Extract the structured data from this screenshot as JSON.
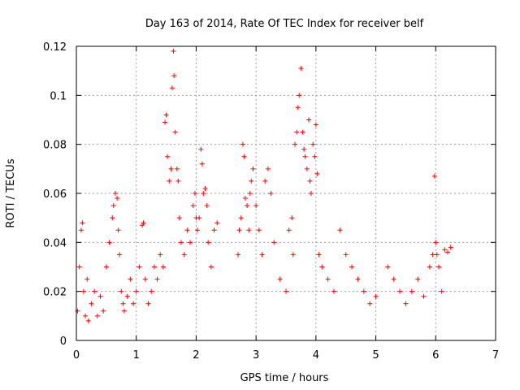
{
  "chart_data": {
    "type": "scatter",
    "title": "Day 163 of 2014, Rate Of TEC Index for receiver belf",
    "xlabel": "GPS time / hours",
    "ylabel": "ROTI / TECUs",
    "xlim": [
      0,
      7
    ],
    "ylim": [
      0,
      0.12
    ],
    "xticks": [
      "0",
      "1",
      "2",
      "3",
      "4",
      "5",
      "6",
      "7"
    ],
    "yticks": [
      "0",
      "0.02",
      "0.04",
      "0.06",
      "0.08",
      "0.1",
      "0.12"
    ],
    "grid": true,
    "marker": "+",
    "color": "#ff0000",
    "series": [
      {
        "name": "ROTI",
        "x": [
          0.02,
          0.05,
          0.08,
          0.1,
          0.12,
          0.15,
          0.18,
          0.2,
          0.25,
          0.3,
          0.35,
          0.4,
          0.45,
          0.5,
          0.55,
          0.6,
          0.62,
          0.65,
          0.68,
          0.7,
          0.72,
          0.75,
          0.78,
          0.8,
          0.85,
          0.9,
          0.95,
          1.0,
          1.05,
          1.1,
          1.12,
          1.15,
          1.2,
          1.25,
          1.3,
          1.35,
          1.4,
          1.45,
          1.48,
          1.5,
          1.52,
          1.55,
          1.58,
          1.6,
          1.62,
          1.63,
          1.65,
          1.68,
          1.7,
          1.72,
          1.75,
          1.8,
          1.85,
          1.9,
          1.95,
          1.98,
          2.0,
          2.02,
          2.05,
          2.08,
          2.1,
          2.12,
          2.15,
          2.18,
          2.2,
          2.25,
          2.3,
          2.35,
          2.7,
          2.72,
          2.75,
          2.78,
          2.8,
          2.82,
          2.85,
          2.88,
          2.9,
          2.92,
          2.95,
          3.0,
          3.05,
          3.1,
          3.15,
          3.2,
          3.25,
          3.3,
          3.4,
          3.5,
          3.55,
          3.6,
          3.62,
          3.65,
          3.68,
          3.7,
          3.72,
          3.75,
          3.78,
          3.8,
          3.82,
          3.85,
          3.88,
          3.9,
          3.92,
          3.95,
          3.98,
          4.0,
          4.02,
          4.05,
          4.1,
          4.2,
          4.3,
          4.4,
          4.5,
          4.6,
          4.7,
          4.8,
          4.9,
          5.0,
          5.2,
          5.3,
          5.4,
          5.5,
          5.6,
          5.7,
          5.8,
          5.9,
          5.95,
          5.98,
          6.0,
          6.02,
          6.05,
          6.1,
          6.15,
          6.2,
          6.25
        ],
        "y": [
          0.012,
          0.03,
          0.045,
          0.048,
          0.02,
          0.01,
          0.025,
          0.008,
          0.015,
          0.02,
          0.01,
          0.018,
          0.012,
          0.03,
          0.04,
          0.05,
          0.055,
          0.06,
          0.058,
          0.045,
          0.035,
          0.02,
          0.015,
          0.012,
          0.018,
          0.025,
          0.015,
          0.02,
          0.03,
          0.047,
          0.048,
          0.025,
          0.015,
          0.02,
          0.03,
          0.025,
          0.035,
          0.03,
          0.089,
          0.092,
          0.075,
          0.065,
          0.07,
          0.103,
          0.118,
          0.108,
          0.085,
          0.07,
          0.065,
          0.05,
          0.04,
          0.035,
          0.045,
          0.04,
          0.055,
          0.06,
          0.05,
          0.045,
          0.05,
          0.078,
          0.072,
          0.06,
          0.062,
          0.055,
          0.04,
          0.03,
          0.045,
          0.048,
          0.035,
          0.045,
          0.05,
          0.08,
          0.075,
          0.058,
          0.055,
          0.045,
          0.06,
          0.065,
          0.07,
          0.055,
          0.045,
          0.035,
          0.065,
          0.07,
          0.06,
          0.04,
          0.025,
          0.02,
          0.045,
          0.05,
          0.035,
          0.08,
          0.085,
          0.095,
          0.1,
          0.111,
          0.085,
          0.078,
          0.075,
          0.07,
          0.09,
          0.065,
          0.06,
          0.08,
          0.075,
          0.088,
          0.068,
          0.035,
          0.03,
          0.025,
          0.02,
          0.045,
          0.035,
          0.03,
          0.025,
          0.02,
          0.015,
          0.018,
          0.03,
          0.025,
          0.02,
          0.015,
          0.02,
          0.025,
          0.018,
          0.03,
          0.035,
          0.067,
          0.04,
          0.035,
          0.03,
          0.02,
          0.037,
          0.036,
          0.038
        ]
      }
    ]
  }
}
